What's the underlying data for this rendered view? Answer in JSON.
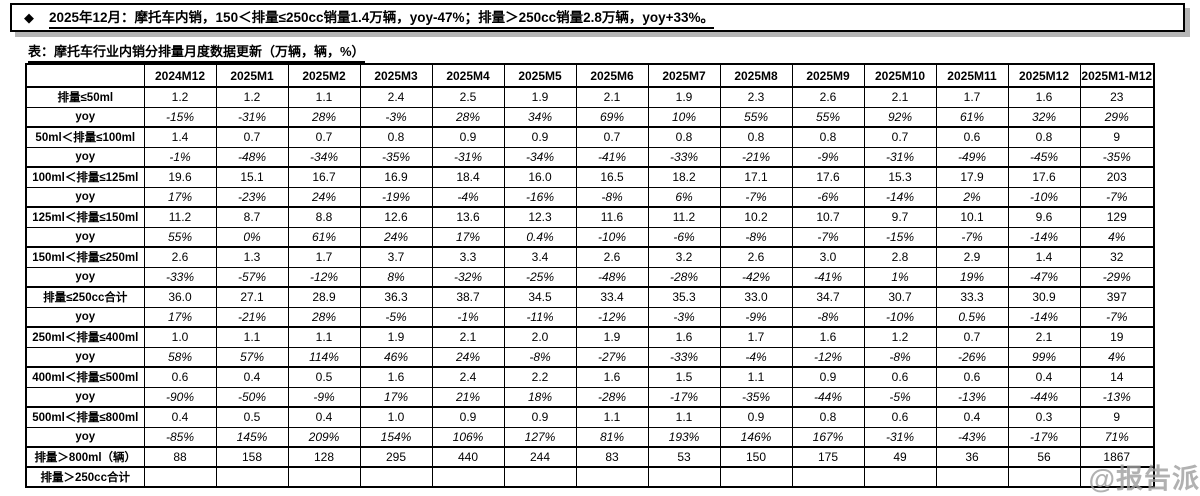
{
  "header_note": {
    "bullet": "◆",
    "text": "2025年12月：摩托车内销，150＜排量≤250cc销量1.4万辆，yoy-47%；排量＞250cc销量2.8万辆，yoy+33%。"
  },
  "table_title": "表：摩托车行业内销分排量月度数据更新（万辆，辆，%）",
  "watermark": "@报告派",
  "table": {
    "columns": [
      "",
      "2024M12",
      "2025M1",
      "2025M2",
      "2025M3",
      "2025M4",
      "2025M5",
      "2025M6",
      "2025M7",
      "2025M8",
      "2025M9",
      "2025M10",
      "2025M11",
      "2025M12",
      "2025M1-M12"
    ],
    "rows": [
      {
        "label": "排量≤50ml",
        "type": "cat",
        "values": [
          "1.2",
          "1.2",
          "1.1",
          "2.4",
          "2.5",
          "1.9",
          "2.1",
          "1.9",
          "2.3",
          "2.6",
          "2.1",
          "1.7",
          "1.6",
          "23"
        ]
      },
      {
        "label": "yoy",
        "type": "yoy",
        "values": [
          "-15%",
          "-31%",
          "28%",
          "-3%",
          "28%",
          "34%",
          "69%",
          "10%",
          "55%",
          "55%",
          "92%",
          "61%",
          "32%",
          "29%"
        ]
      },
      {
        "label": "50ml＜排量≤100ml",
        "type": "cat",
        "values": [
          "1.4",
          "0.7",
          "0.7",
          "0.8",
          "0.9",
          "0.9",
          "0.7",
          "0.8",
          "0.8",
          "0.8",
          "0.7",
          "0.6",
          "0.8",
          "9"
        ]
      },
      {
        "label": "yoy",
        "type": "yoy",
        "values": [
          "-1%",
          "-48%",
          "-34%",
          "-35%",
          "-31%",
          "-34%",
          "-41%",
          "-33%",
          "-21%",
          "-9%",
          "-31%",
          "-49%",
          "-45%",
          "-35%"
        ]
      },
      {
        "label": "100ml＜排量≤125ml",
        "type": "cat",
        "values": [
          "19.6",
          "15.1",
          "16.7",
          "16.9",
          "18.4",
          "16.0",
          "16.5",
          "18.2",
          "17.1",
          "17.6",
          "15.3",
          "17.9",
          "17.6",
          "203"
        ]
      },
      {
        "label": "yoy",
        "type": "yoy",
        "values": [
          "17%",
          "-23%",
          "24%",
          "-19%",
          "-4%",
          "-16%",
          "-8%",
          "6%",
          "-7%",
          "-6%",
          "-14%",
          "2%",
          "-10%",
          "-7%"
        ]
      },
      {
        "label": "125ml＜排量≤150ml",
        "type": "cat",
        "values": [
          "11.2",
          "8.7",
          "8.8",
          "12.6",
          "13.6",
          "12.3",
          "11.6",
          "11.2",
          "10.2",
          "10.7",
          "9.7",
          "10.1",
          "9.6",
          "129"
        ]
      },
      {
        "label": "yoy",
        "type": "yoy",
        "values": [
          "55%",
          "0%",
          "61%",
          "24%",
          "17%",
          "0.4%",
          "-10%",
          "-6%",
          "-8%",
          "-7%",
          "-15%",
          "-7%",
          "-14%",
          "4%"
        ]
      },
      {
        "label": "150ml＜排量≤250ml",
        "type": "cat",
        "values": [
          "2.6",
          "1.3",
          "1.7",
          "3.7",
          "3.3",
          "3.4",
          "2.6",
          "3.2",
          "2.6",
          "3.0",
          "2.8",
          "2.9",
          "1.4",
          "32"
        ]
      },
      {
        "label": "yoy",
        "type": "yoy",
        "values": [
          "-33%",
          "-57%",
          "-12%",
          "8%",
          "-32%",
          "-25%",
          "-48%",
          "-28%",
          "-42%",
          "-41%",
          "1%",
          "19%",
          "-47%",
          "-29%"
        ]
      },
      {
        "label": "排量≤250cc合计",
        "type": "cat",
        "values": [
          "36.0",
          "27.1",
          "28.9",
          "36.3",
          "38.7",
          "34.5",
          "33.4",
          "35.3",
          "33.0",
          "34.7",
          "30.7",
          "33.3",
          "30.9",
          "397"
        ]
      },
      {
        "label": "yoy",
        "type": "yoy",
        "values": [
          "17%",
          "-21%",
          "28%",
          "-5%",
          "-1%",
          "-11%",
          "-12%",
          "-3%",
          "-9%",
          "-8%",
          "-10%",
          "0.5%",
          "-14%",
          "-7%"
        ]
      },
      {
        "label": "250ml＜排量≤400ml",
        "type": "cat",
        "values": [
          "1.0",
          "1.1",
          "1.1",
          "1.9",
          "2.1",
          "2.0",
          "1.9",
          "1.6",
          "1.7",
          "1.6",
          "1.2",
          "0.7",
          "2.1",
          "19"
        ]
      },
      {
        "label": "yoy",
        "type": "yoy",
        "values": [
          "58%",
          "57%",
          "114%",
          "46%",
          "24%",
          "-8%",
          "-27%",
          "-33%",
          "-4%",
          "-12%",
          "-8%",
          "-26%",
          "99%",
          "4%"
        ]
      },
      {
        "label": "400ml＜排量≤500ml",
        "type": "cat",
        "values": [
          "0.6",
          "0.4",
          "0.5",
          "1.6",
          "2.4",
          "2.2",
          "1.6",
          "1.5",
          "1.1",
          "0.9",
          "0.6",
          "0.6",
          "0.4",
          "14"
        ]
      },
      {
        "label": "yoy",
        "type": "yoy",
        "values": [
          "-90%",
          "-50%",
          "-9%",
          "17%",
          "21%",
          "18%",
          "-28%",
          "-17%",
          "-35%",
          "-44%",
          "-5%",
          "-13%",
          "-44%",
          "-13%"
        ]
      },
      {
        "label": "500ml＜排量≤800ml",
        "type": "cat",
        "values": [
          "0.4",
          "0.5",
          "0.4",
          "1.0",
          "0.9",
          "0.9",
          "1.1",
          "1.1",
          "0.9",
          "0.8",
          "0.6",
          "0.4",
          "0.3",
          "9"
        ]
      },
      {
        "label": "yoy",
        "type": "yoy",
        "values": [
          "-85%",
          "145%",
          "209%",
          "154%",
          "106%",
          "127%",
          "81%",
          "193%",
          "146%",
          "167%",
          "-31%",
          "-43%",
          "-17%",
          "71%"
        ]
      },
      {
        "label": "排量＞800ml（辆）",
        "type": "cat",
        "values": [
          "88",
          "158",
          "128",
          "295",
          "440",
          "244",
          "83",
          "53",
          "150",
          "175",
          "49",
          "36",
          "56",
          "1867"
        ]
      },
      {
        "label": "排量＞250cc合计",
        "type": "cat",
        "values": [
          "",
          "",
          "",
          "",
          "",
          "",
          "",
          "",
          "",
          "",
          "",
          "",
          "",
          ""
        ]
      }
    ]
  }
}
